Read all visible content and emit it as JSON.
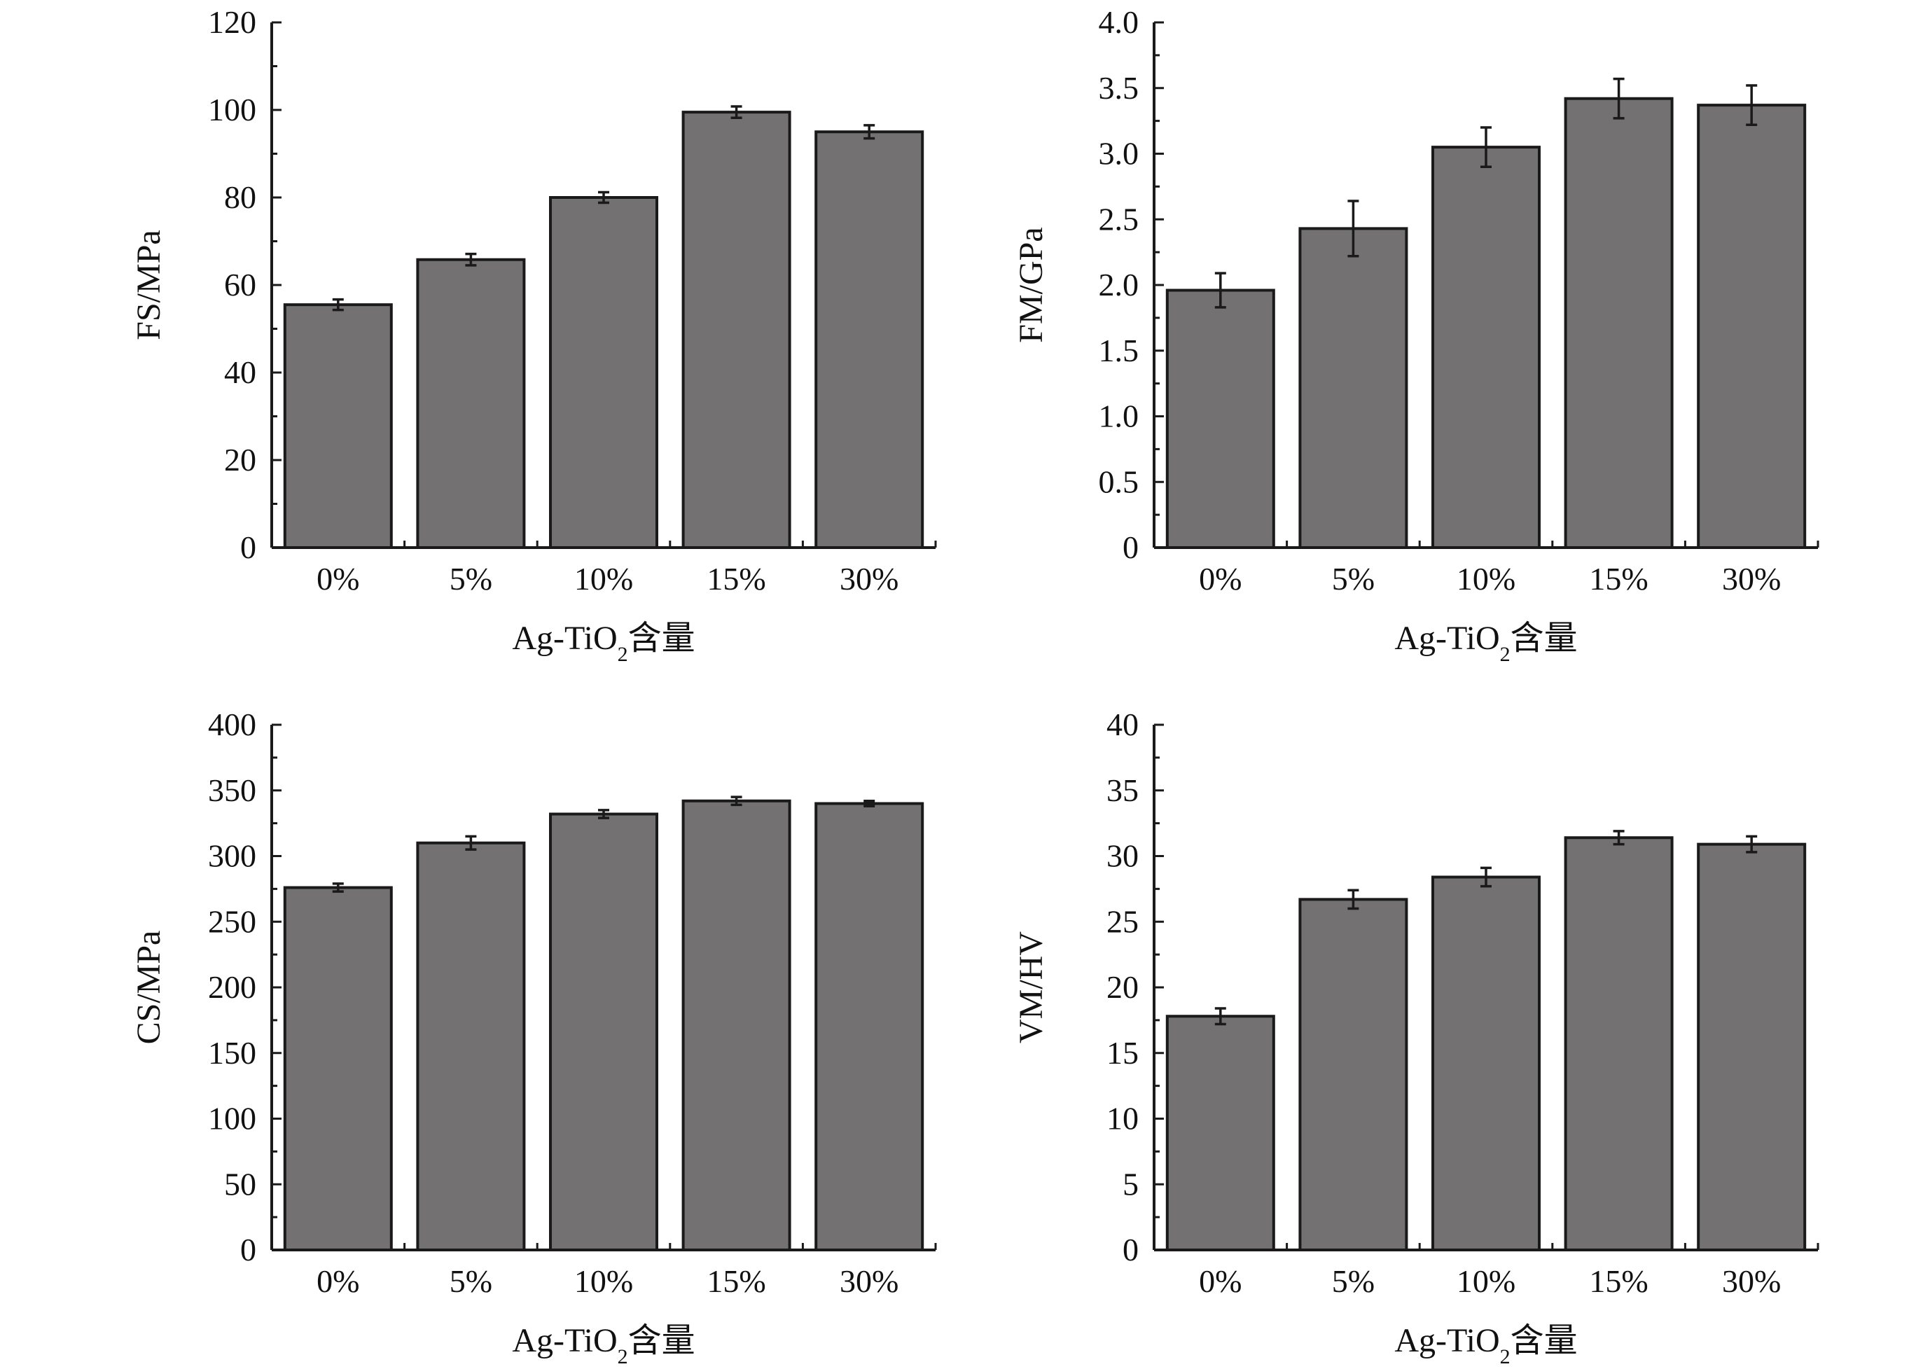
{
  "chart_data": [
    {
      "type": "bar",
      "id": "fs",
      "categories": [
        "0%",
        "5%",
        "10%",
        "15%",
        "30%"
      ],
      "values": [
        55.5,
        65.8,
        80.0,
        99.5,
        95.0
      ],
      "errors": [
        1.2,
        1.3,
        1.2,
        1.3,
        1.5
      ],
      "ylim": [
        0,
        120
      ],
      "yticks": [
        0,
        20,
        40,
        60,
        80,
        100,
        120
      ],
      "ytick_labels": [
        "0",
        "20",
        "40",
        "60",
        "80",
        "100",
        "120"
      ],
      "ylabel": "FS/MPa",
      "xlabel": "Ag-TiO2含量",
      "bar_color": "#737171",
      "grid": false
    },
    {
      "type": "bar",
      "id": "fm",
      "categories": [
        "0%",
        "5%",
        "10%",
        "15%",
        "30%"
      ],
      "values": [
        1.96,
        2.43,
        3.05,
        3.42,
        3.37
      ],
      "errors": [
        0.13,
        0.21,
        0.15,
        0.15,
        0.15
      ],
      "ylim": [
        0,
        4.0
      ],
      "yticks": [
        0,
        0.5,
        1.0,
        1.5,
        2.0,
        2.5,
        3.0,
        3.5,
        4.0
      ],
      "ytick_labels": [
        "0",
        "0.5",
        "1.0",
        "1.5",
        "2.0",
        "2.5",
        "3.0",
        "3.5",
        "4.0"
      ],
      "ylabel": "FM/GPa",
      "xlabel": "Ag-TiO2含量",
      "bar_color": "#737171",
      "grid": false
    },
    {
      "type": "bar",
      "id": "cs",
      "categories": [
        "0%",
        "5%",
        "10%",
        "15%",
        "30%"
      ],
      "values": [
        276,
        310,
        332,
        342,
        340
      ],
      "errors": [
        3,
        5,
        3,
        3,
        2
      ],
      "ylim": [
        0,
        400
      ],
      "yticks": [
        0,
        50,
        100,
        150,
        200,
        250,
        300,
        350,
        400
      ],
      "ytick_labels": [
        "0",
        "50",
        "100",
        "150",
        "200",
        "250",
        "300",
        "350",
        "400"
      ],
      "ylabel": "CS/MPa",
      "xlabel": "Ag-TiO2含量",
      "bar_color": "#737171",
      "grid": false
    },
    {
      "type": "bar",
      "id": "vm",
      "categories": [
        "0%",
        "5%",
        "10%",
        "15%",
        "30%"
      ],
      "values": [
        17.8,
        26.7,
        28.4,
        31.4,
        30.9
      ],
      "errors": [
        0.6,
        0.7,
        0.7,
        0.5,
        0.6
      ],
      "ylim": [
        0,
        40
      ],
      "yticks": [
        0,
        5,
        10,
        15,
        20,
        25,
        30,
        35,
        40
      ],
      "ytick_labels": [
        "0",
        "5",
        "10",
        "15",
        "20",
        "25",
        "30",
        "35",
        "40"
      ],
      "ylabel": "VM/HV",
      "xlabel": "Ag-TiO2含量",
      "bar_color": "#737171",
      "grid": false
    }
  ]
}
